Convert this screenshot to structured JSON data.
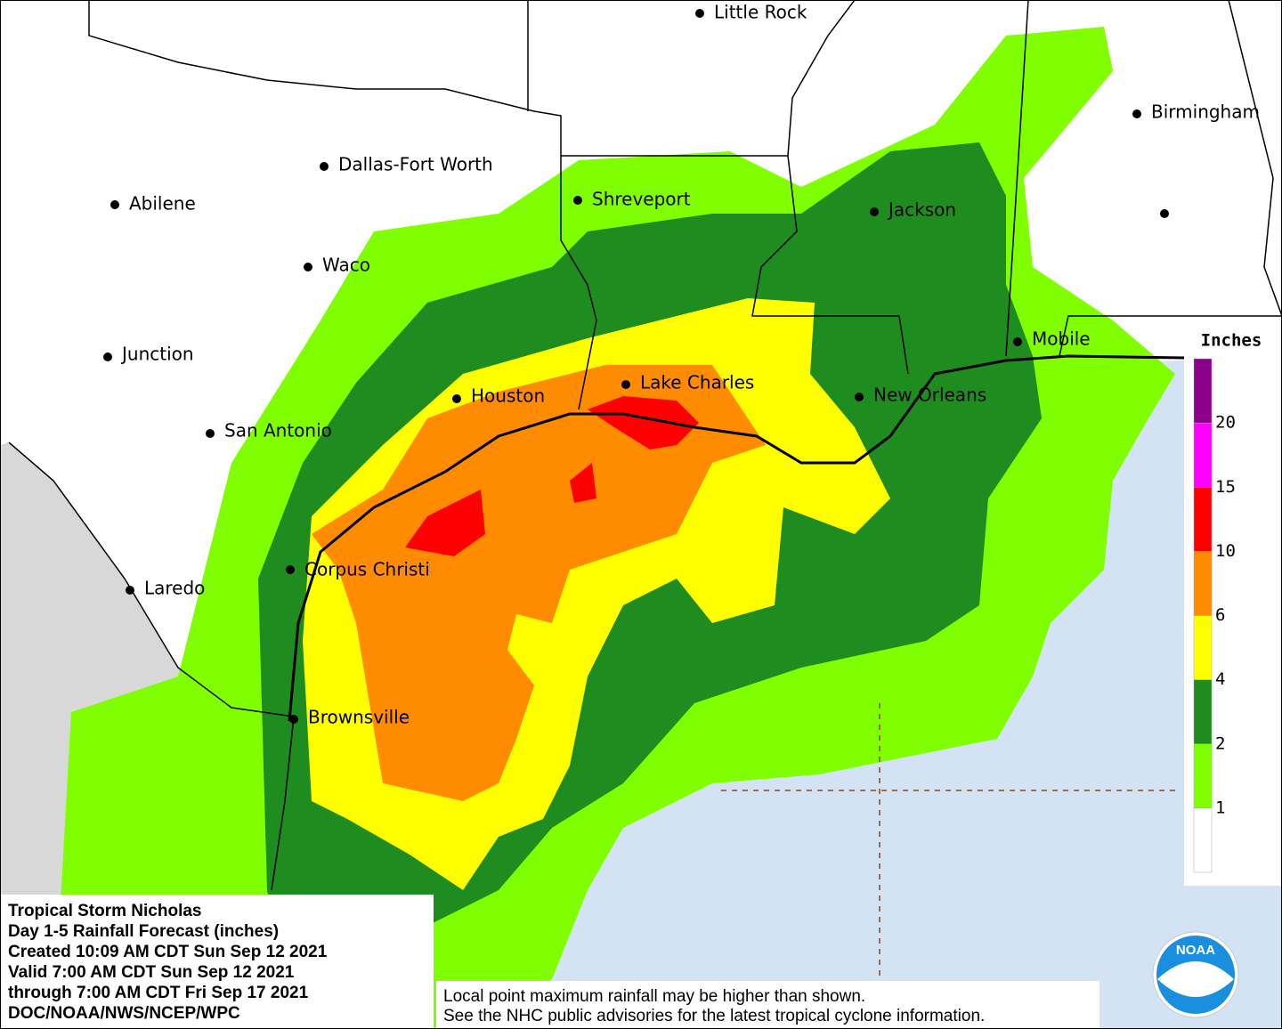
{
  "title_block": {
    "lines": [
      "Tropical Storm Nicholas",
      "Day 1-5 Rainfall Forecast (inches)",
      "Created 10:09 AM CDT Sun Sep 12 2021",
      "Valid 7:00 AM CDT Sun Sep 12 2021",
      "through 7:00 AM CDT Fri Sep 17 2021",
      "DOC/NOAA/NWS/NCEP/WPC"
    ]
  },
  "note": {
    "lines": [
      "Local point maximum rainfall may be higher than shown.",
      "See the NHC public advisories for the latest tropical cyclone information."
    ]
  },
  "cities": [
    "Little Rock",
    "Birmingham",
    "Dallas-Fort Worth",
    "Abilene",
    "Shreveport",
    "Jackson",
    "Waco",
    "Junction",
    "Houston",
    "Lake Charles",
    "New Orleans",
    "Mobile",
    "San Antonio",
    "Corpus Christi",
    "Laredo",
    "Brownsville"
  ],
  "legend": {
    "title": "Inches",
    "breaks": [
      1,
      2,
      4,
      6,
      10,
      15,
      20
    ],
    "colors": [
      "#ffffff",
      "#7fff00",
      "#1e8c1e",
      "#ffff00",
      "#ff8c00",
      "#ff0000",
      "#ff00ff",
      "#8b008b"
    ]
  },
  "logo": "NOAA"
}
